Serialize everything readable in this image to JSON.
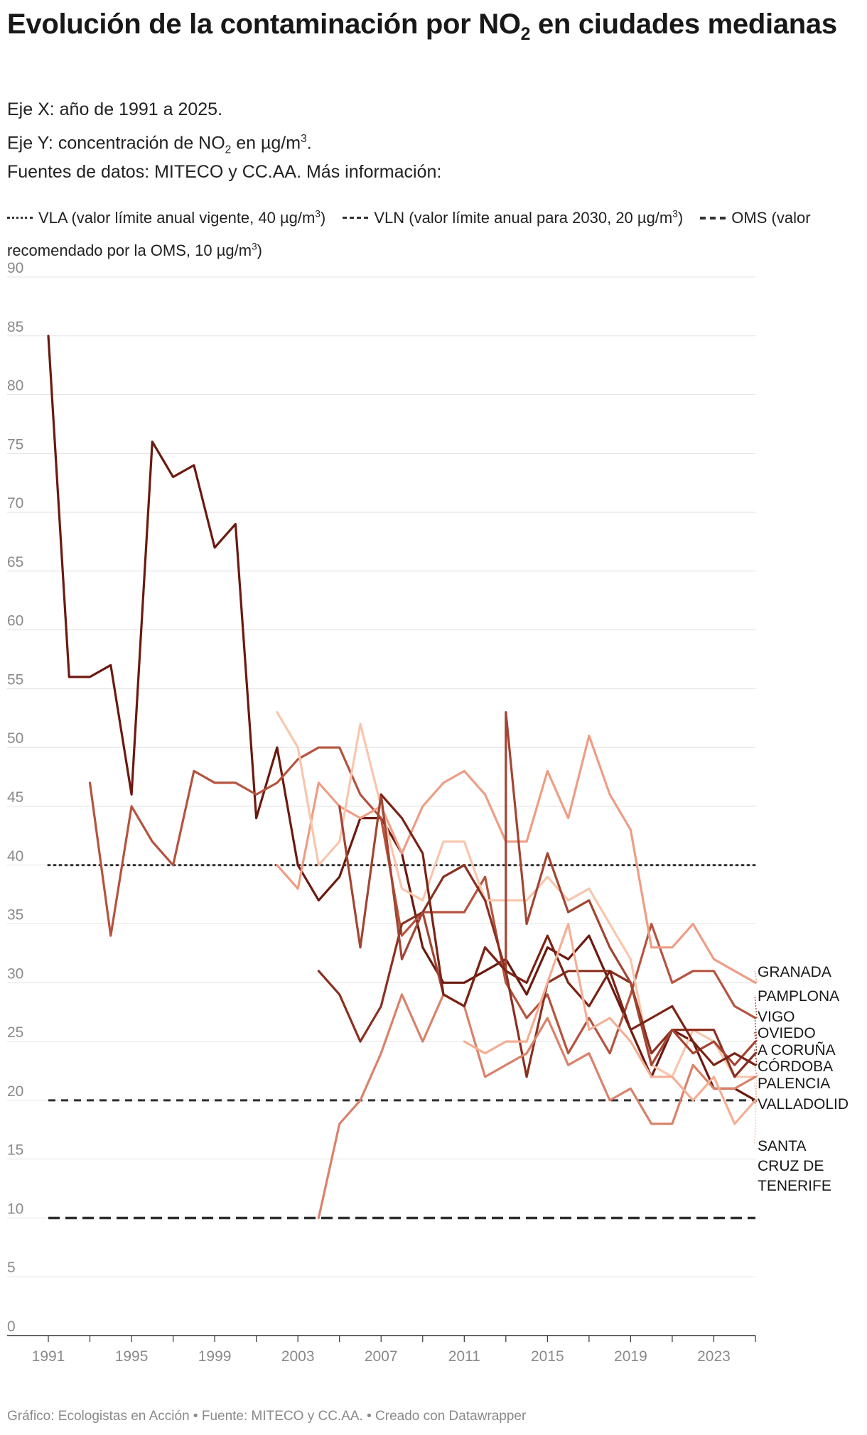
{
  "title": {
    "text": "Evolución de la contaminación por NO",
    "subscript": "2",
    "text_end": " en ciudades medianas"
  },
  "subtitle": {
    "x_axis": "Eje X: año de 1991 a 2025.",
    "y_axis_start": "Eje Y: concentración de NO",
    "y_axis_sub": "2",
    "y_axis_mid": " en µg/m",
    "y_axis_sup": "3",
    "y_axis_end": ".",
    "sources": "Fuentes de datos: MITECO y CC.AA. Más información:"
  },
  "legend": {
    "vla_text": "VLA (valor límite anual vigente, 40 µg/m",
    "vla_sup": "3",
    "vla_end": ")",
    "vln_text": "VLN (valor límite anual para 2030, 20 µg/m",
    "vln_sup": "3",
    "vln_end": ")",
    "oms_text": "OMS (valor recomendado por la OMS, 10 µg/m",
    "oms_sup": "3",
    "oms_end": ")"
  },
  "footer": "Gráfico: Ecologistas en Acción • Fuente: MITECO y CC.AA. • Creado con Datawrapper",
  "chart_data": {
    "type": "line",
    "title": "Evolución de la contaminación por NO2 en ciudades medianas",
    "xlabel": "Eje X: año de 1991 a 2025.",
    "ylabel": "Eje Y: concentración de NO2 en µg/m3.",
    "xlim": [
      1991,
      2025
    ],
    "ylim": [
      0,
      90
    ],
    "x_ticks": [
      1991,
      1995,
      1999,
      2003,
      2007,
      2011,
      2015,
      2019,
      2023
    ],
    "y_ticks": [
      0,
      5,
      10,
      15,
      20,
      25,
      30,
      35,
      40,
      45,
      50,
      55,
      60,
      65,
      70,
      75,
      80,
      85,
      90
    ],
    "grid": true,
    "legend": "top",
    "reference_lines": [
      {
        "name": "VLA",
        "value": 40,
        "style": "dotted"
      },
      {
        "name": "VLN",
        "value": 20,
        "style": "dashed"
      },
      {
        "name": "OMS",
        "value": 10,
        "style": "long-dashed"
      }
    ],
    "series": [
      {
        "name": "VALLADOLID",
        "color": "#6b1a0f",
        "points": [
          [
            1991,
            85
          ],
          [
            1992,
            56
          ],
          [
            1993,
            56
          ],
          [
            1994,
            57
          ],
          [
            1995,
            46
          ],
          [
            1996,
            76
          ],
          [
            1997,
            73
          ],
          [
            1998,
            74
          ],
          [
            1999,
            67
          ],
          [
            2000,
            69
          ],
          [
            2001,
            44
          ],
          [
            2002,
            50
          ],
          [
            2003,
            40
          ],
          [
            2004,
            37
          ],
          [
            2005,
            39
          ],
          [
            2006,
            44
          ],
          [
            2007,
            44
          ],
          [
            2008,
            41
          ],
          [
            2009,
            33
          ],
          [
            2010,
            30
          ],
          [
            2011,
            30
          ],
          [
            2012,
            31
          ],
          [
            2013,
            32
          ],
          [
            2014,
            29
          ],
          [
            2015,
            33
          ],
          [
            2016,
            32
          ],
          [
            2017,
            34
          ],
          [
            2018,
            30
          ],
          [
            2019,
            26
          ],
          [
            2020,
            22
          ],
          [
            2021,
            26
          ],
          [
            2022,
            25
          ],
          [
            2023,
            21
          ],
          [
            2024,
            21
          ],
          [
            2025,
            20
          ]
        ]
      },
      {
        "name": "PAMPLONA",
        "color": "#b5533e",
        "points": [
          [
            1993,
            47
          ],
          [
            1994,
            34
          ],
          [
            1995,
            45
          ],
          [
            1996,
            42
          ],
          [
            1997,
            40
          ],
          [
            1998,
            48
          ],
          [
            1999,
            47
          ],
          [
            2000,
            47
          ],
          [
            2001,
            46
          ],
          [
            2002,
            47
          ],
          [
            2003,
            49
          ],
          [
            2004,
            50
          ],
          [
            2005,
            50
          ],
          [
            2006,
            46
          ],
          [
            2007,
            44
          ],
          [
            2008,
            34
          ],
          [
            2009,
            36
          ],
          [
            2010,
            36
          ],
          [
            2011,
            36
          ],
          [
            2012,
            39
          ],
          [
            2013,
            30
          ],
          [
            2014,
            27
          ],
          [
            2015,
            29
          ],
          [
            2016,
            24
          ],
          [
            2017,
            27
          ],
          [
            2018,
            24
          ],
          [
            2019,
            29
          ],
          [
            2020,
            35
          ],
          [
            2021,
            30
          ],
          [
            2022,
            31
          ],
          [
            2023,
            31
          ],
          [
            2024,
            28
          ],
          [
            2025,
            27
          ]
        ]
      },
      {
        "name": "GRANADA",
        "color": "#ee9d84",
        "points": [
          [
            2002,
            40
          ],
          [
            2003,
            38
          ],
          [
            2004,
            47
          ],
          [
            2005,
            45
          ],
          [
            2006,
            44
          ],
          [
            2007,
            45
          ],
          [
            2008,
            41
          ],
          [
            2009,
            45
          ],
          [
            2010,
            47
          ],
          [
            2011,
            48
          ],
          [
            2012,
            46
          ],
          [
            2013,
            42
          ],
          [
            2014,
            42
          ],
          [
            2015,
            48
          ],
          [
            2016,
            44
          ],
          [
            2017,
            51
          ],
          [
            2018,
            46
          ],
          [
            2019,
            43
          ],
          [
            2020,
            33
          ],
          [
            2021,
            33
          ],
          [
            2022,
            35
          ],
          [
            2023,
            32
          ],
          [
            2024,
            31
          ],
          [
            2025,
            30
          ]
        ]
      },
      {
        "name": "SANTA CRUZ DE TENERIFE",
        "color": "#f8c6ad",
        "points": [
          [
            2002,
            53
          ],
          [
            2003,
            50
          ],
          [
            2004,
            40
          ],
          [
            2005,
            42
          ],
          [
            2006,
            52
          ],
          [
            2007,
            45
          ],
          [
            2008,
            38
          ],
          [
            2009,
            37
          ],
          [
            2010,
            42
          ],
          [
            2011,
            42
          ],
          [
            2012,
            37
          ],
          [
            2013,
            37
          ],
          [
            2014,
            37
          ],
          [
            2015,
            39
          ],
          [
            2016,
            37
          ],
          [
            2017,
            38
          ],
          [
            2018,
            35
          ],
          [
            2019,
            32
          ],
          [
            2020,
            23
          ],
          [
            2021,
            22
          ],
          [
            2022,
            26
          ],
          [
            2023,
            25
          ],
          [
            2024,
            22
          ],
          [
            2025,
            22
          ]
        ]
      },
      {
        "name": "OVIEDO",
        "color": "#8a3020",
        "points": [
          [
            2004,
            31
          ],
          [
            2005,
            29
          ],
          [
            2006,
            25
          ],
          [
            2007,
            28
          ],
          [
            2008,
            35
          ],
          [
            2009,
            36
          ],
          [
            2010,
            39
          ],
          [
            2011,
            40
          ],
          [
            2012,
            37
          ],
          [
            2013,
            31
          ],
          [
            2014,
            22
          ],
          [
            2015,
            30
          ],
          [
            2016,
            31
          ],
          [
            2017,
            31
          ],
          [
            2018,
            31
          ],
          [
            2019,
            30
          ],
          [
            2020,
            24
          ],
          [
            2021,
            26
          ],
          [
            2022,
            26
          ],
          [
            2023,
            26
          ],
          [
            2024,
            22
          ],
          [
            2025,
            24
          ]
        ]
      },
      {
        "name": "CÓRDOBA",
        "color": "#d9826a",
        "points": [
          [
            2004,
            10
          ],
          [
            2005,
            18
          ],
          [
            2006,
            20
          ],
          [
            2007,
            24
          ],
          [
            2008,
            29
          ],
          [
            2009,
            25
          ],
          [
            2010,
            29
          ],
          [
            2011,
            28
          ],
          [
            2012,
            22
          ],
          [
            2013,
            23
          ],
          [
            2014,
            24
          ],
          [
            2015,
            27
          ],
          [
            2016,
            23
          ],
          [
            2017,
            24
          ],
          [
            2018,
            20
          ],
          [
            2019,
            21
          ],
          [
            2020,
            18
          ],
          [
            2021,
            18
          ],
          [
            2022,
            23
          ],
          [
            2023,
            21
          ],
          [
            2024,
            21
          ],
          [
            2025,
            22
          ]
        ]
      },
      {
        "name": "VIGO",
        "color": "#a34532",
        "points": [
          [
            2005,
            45
          ],
          [
            2006,
            33
          ],
          [
            2007,
            46
          ],
          [
            2008,
            32
          ],
          [
            2009,
            36
          ],
          [
            2010,
            29
          ],
          [
            2011,
            28
          ],
          [
            2012,
            33
          ],
          [
            2013,
            31
          ],
          [
            2013,
            53
          ],
          [
            2014,
            35
          ],
          [
            2015,
            41
          ],
          [
            2016,
            36
          ],
          [
            2017,
            37
          ],
          [
            2018,
            33
          ],
          [
            2019,
            30
          ],
          [
            2020,
            23
          ],
          [
            2021,
            26
          ],
          [
            2022,
            24
          ],
          [
            2023,
            25
          ],
          [
            2024,
            23
          ],
          [
            2025,
            25
          ]
        ]
      },
      {
        "name": "A CORUÑA",
        "color": "#7a2416",
        "points": [
          [
            2007,
            46
          ],
          [
            2008,
            44
          ],
          [
            2009,
            41
          ],
          [
            2010,
            29
          ],
          [
            2011,
            28
          ],
          [
            2012,
            33
          ],
          [
            2013,
            31
          ],
          [
            2014,
            30
          ],
          [
            2015,
            34
          ],
          [
            2016,
            30
          ],
          [
            2017,
            28
          ],
          [
            2018,
            31
          ],
          [
            2019,
            26
          ],
          [
            2020,
            27
          ],
          [
            2021,
            28
          ],
          [
            2022,
            25
          ],
          [
            2023,
            23
          ],
          [
            2024,
            24
          ],
          [
            2025,
            23
          ]
        ]
      },
      {
        "name": "PALENCIA",
        "color": "#f4ae95",
        "points": [
          [
            2011,
            25
          ],
          [
            2012,
            24
          ],
          [
            2013,
            25
          ],
          [
            2014,
            25
          ],
          [
            2015,
            30
          ],
          [
            2016,
            35
          ],
          [
            2017,
            26
          ],
          [
            2018,
            27
          ],
          [
            2019,
            25
          ],
          [
            2020,
            22
          ],
          [
            2021,
            22
          ],
          [
            2022,
            20
          ],
          [
            2023,
            22
          ],
          [
            2024,
            18
          ],
          [
            2025,
            20
          ]
        ]
      }
    ],
    "end_labels": [
      {
        "series": "GRANADA",
        "lines": [
          "GRANADA"
        ]
      },
      {
        "series": "PAMPLONA",
        "lines": [
          "PAMPLONA"
        ]
      },
      {
        "series": "VIGO",
        "lines": [
          "VIGO"
        ]
      },
      {
        "series": "OVIEDO",
        "lines": [
          "OVIEDO"
        ]
      },
      {
        "series": "A CORUÑA",
        "lines": [
          "A CORUÑA"
        ]
      },
      {
        "series": "CÓRDOBA",
        "lines": [
          "CÓRDOBA"
        ]
      },
      {
        "series": "PALENCIA",
        "lines": [
          "PALENCIA"
        ]
      },
      {
        "series": "VALLADOLID",
        "lines": [
          "VALLADOLID"
        ]
      },
      {
        "series": "SANTA CRUZ DE TENERIFE",
        "lines": [
          "SANTA",
          "CRUZ DE",
          "TENERIFE"
        ]
      }
    ]
  }
}
